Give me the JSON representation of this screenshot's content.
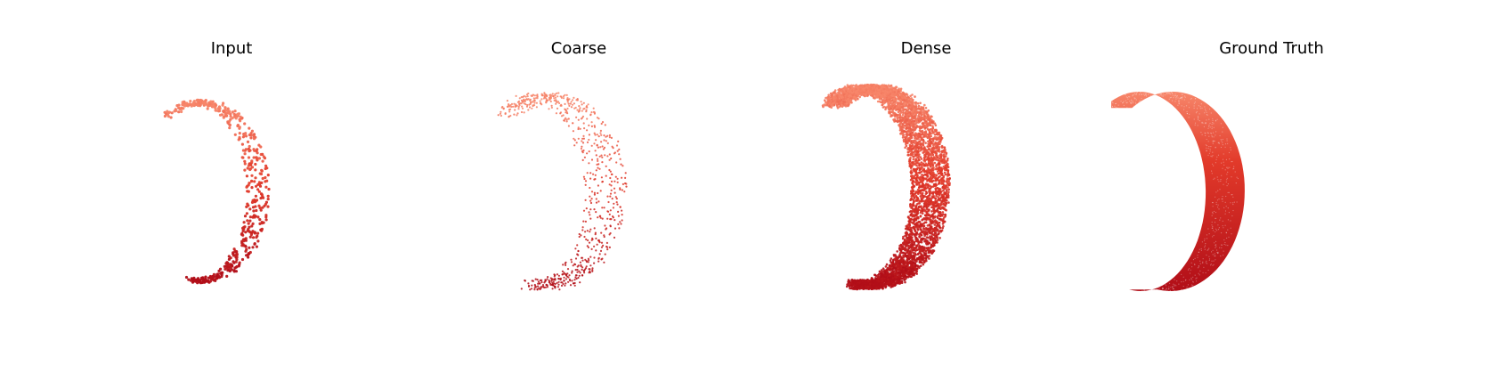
{
  "panels": [
    {
      "title": "Input",
      "style": "sparse-points"
    },
    {
      "title": "Coarse",
      "style": "scattered-points"
    },
    {
      "title": "Dense",
      "style": "dense-cloud"
    },
    {
      "title": "Ground Truth",
      "style": "solid-band"
    }
  ],
  "colors": {
    "light": "#f7866a",
    "mid": "#e23a2a",
    "dark": "#b10e18",
    "background": "#ffffff"
  }
}
